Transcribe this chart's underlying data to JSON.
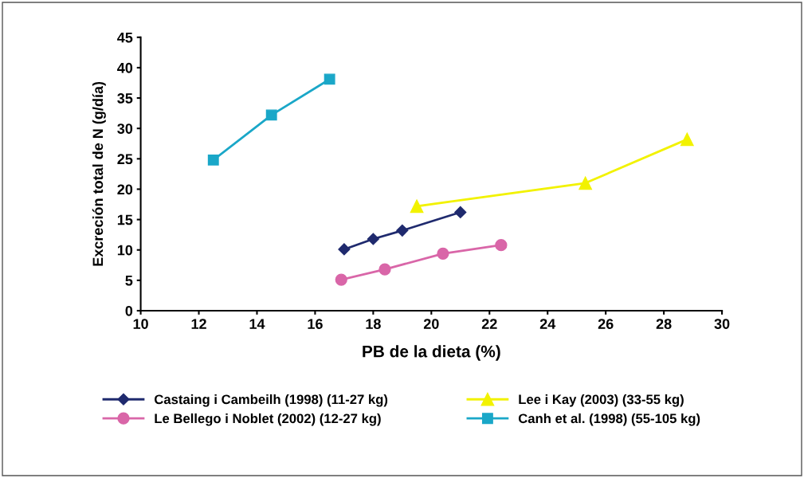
{
  "chart_data": {
    "type": "line",
    "xlabel": "PB de la dieta (%)",
    "ylabel": "Excreción total de N (g/día)",
    "xlim": [
      10,
      30
    ],
    "xticks": [
      10,
      12,
      14,
      16,
      18,
      20,
      22,
      24,
      26,
      28,
      30
    ],
    "ylim": [
      0,
      45
    ],
    "yticks": [
      0,
      5,
      10,
      15,
      20,
      25,
      30,
      35,
      40,
      45
    ],
    "grid": false,
    "legend": "bottom",
    "line_style": "solid",
    "series": [
      {
        "name": "Castaing i Cambeilh (1998) (11-27 kg)",
        "color": "#1f2a6e",
        "marker": "diamond",
        "x": [
          17,
          18,
          19,
          21
        ],
        "values": [
          10.1,
          11.8,
          13.2,
          16.2
        ]
      },
      {
        "name": "Le Bellego i Noblet (2002) (12-27 kg)",
        "color": "#d966a8",
        "marker": "circle",
        "x": [
          16.9,
          18.4,
          20.4,
          22.4
        ],
        "values": [
          5.1,
          6.8,
          9.4,
          10.8
        ]
      },
      {
        "name": "Lee i Kay (2003) (33-55 kg)",
        "color": "#f2f200",
        "marker": "triangle",
        "x": [
          19.5,
          25.3,
          28.8
        ],
        "values": [
          17.2,
          21.0,
          28.2
        ]
      },
      {
        "name": "Canh et al. (1998) (55-105 kg)",
        "color": "#1aa7c8",
        "marker": "square",
        "x": [
          12.5,
          14.5,
          16.5
        ],
        "values": [
          24.8,
          32.2,
          38.1
        ]
      }
    ]
  }
}
